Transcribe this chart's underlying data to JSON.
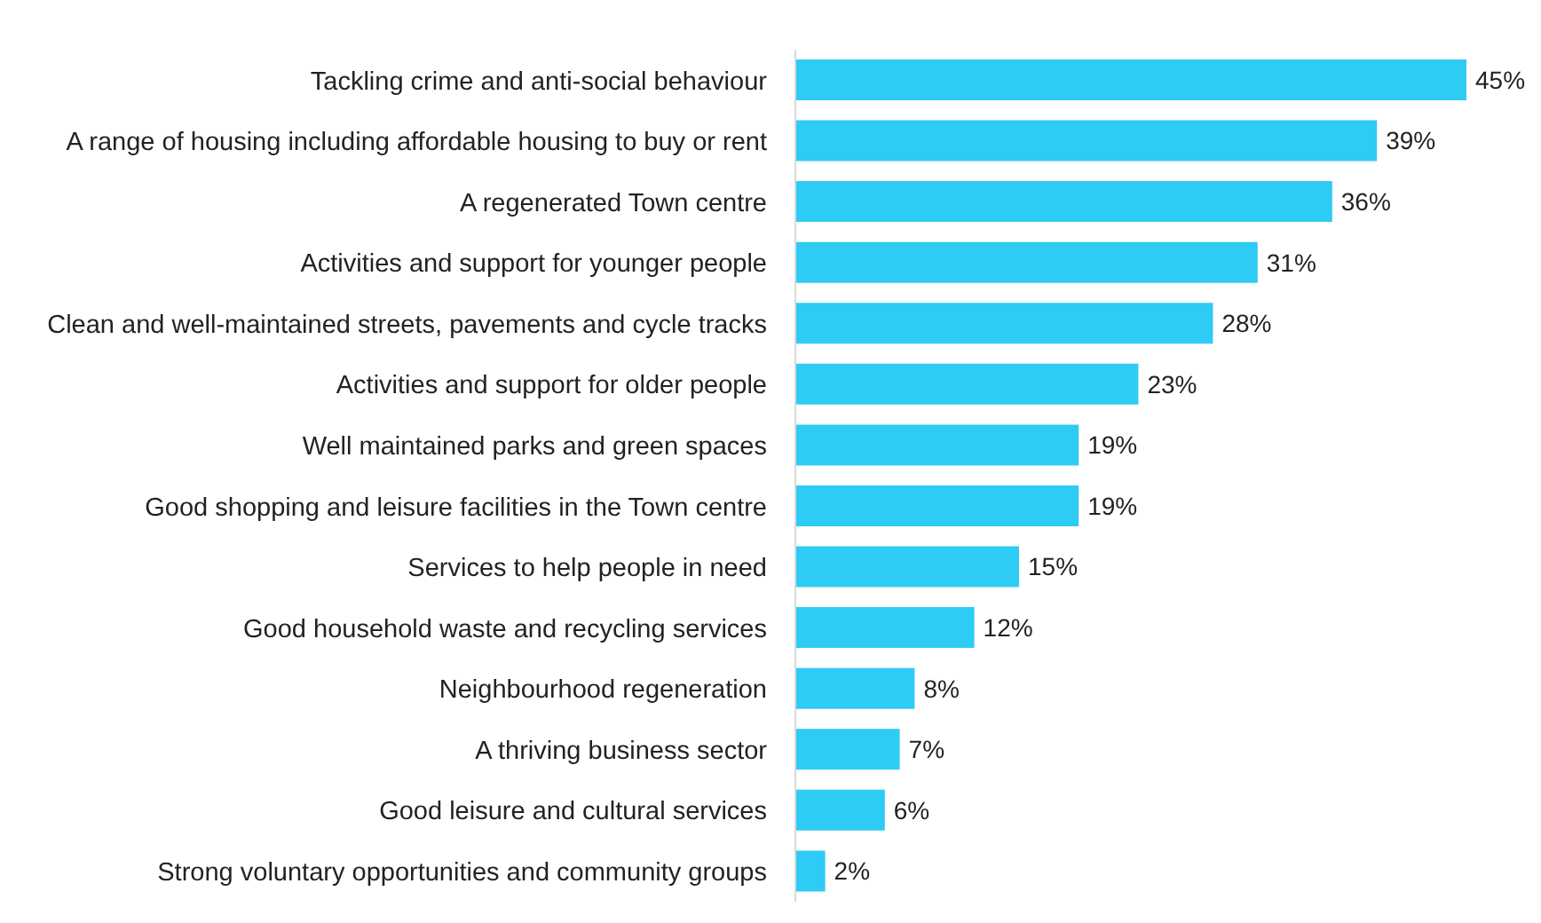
{
  "chart_data": {
    "type": "bar",
    "orientation": "horizontal",
    "categories": [
      "Tackling crime and anti-social behaviour",
      "A range of housing including affordable housing to buy or rent",
      "A regenerated Town centre",
      "Activities and support for younger people",
      "Clean and well-maintained streets, pavements and cycle tracks",
      "Activities and support for older people",
      "Well maintained parks and green spaces",
      "Good shopping and leisure facilities in the Town centre",
      "Services to help people in need",
      "Good household waste and recycling services",
      "Neighbourhood regeneration",
      "A thriving business sector",
      "Good leisure and cultural services",
      "Strong voluntary opportunities and community groups"
    ],
    "values": [
      45,
      39,
      36,
      31,
      28,
      23,
      19,
      19,
      15,
      12,
      8,
      7,
      6,
      2
    ],
    "value_labels": [
      "45%",
      "39%",
      "36%",
      "31%",
      "28%",
      "23%",
      "19%",
      "19%",
      "15%",
      "12%",
      "8%",
      "7%",
      "6%",
      "2%"
    ],
    "color": "#2ecbf5"
  }
}
